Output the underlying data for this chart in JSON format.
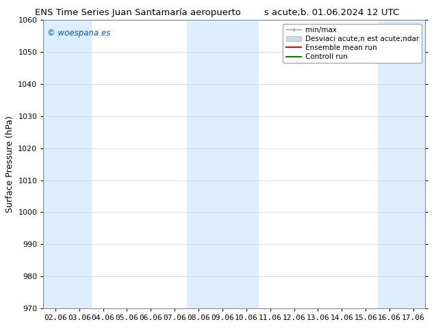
{
  "title_left": "ENS Time Series Juan Santamaría aeropuerto",
  "title_right": "s acute;b. 01.06.2024 12 UTC",
  "ylabel": "Surface Pressure (hPa)",
  "ylim": [
    970,
    1060
  ],
  "yticks": [
    970,
    980,
    990,
    1000,
    1010,
    1020,
    1030,
    1040,
    1050,
    1060
  ],
  "x_labels": [
    "02.06",
    "03.06",
    "04.06",
    "05.06",
    "06.06",
    "07.06",
    "08.06",
    "09.06",
    "10.06",
    "11.06",
    "12.06",
    "13.06",
    "14.06",
    "15.06",
    "16.06",
    "17.06"
  ],
  "band_color": "#ddeeff",
  "shaded_indices": [
    0,
    1,
    6,
    7,
    8,
    14,
    15
  ],
  "watermark": "© woespana.es",
  "watermark_color": "#0055bb",
  "legend_label_minmax": "min/max",
  "legend_label_std": "Desviaci acute;n est acute;ndar",
  "legend_label_ens": "Ensemble mean run",
  "legend_label_ctrl": "Controll run",
  "legend_color_minmax": "#999999",
  "legend_color_std": "#c8dcea",
  "legend_color_ens": "#ff0000",
  "legend_color_ctrl": "#008000",
  "bg_color": "#ffffff",
  "grid_color": "#cccccc",
  "title_fontsize": 9.5,
  "tick_fontsize": 8,
  "ylabel_fontsize": 9
}
